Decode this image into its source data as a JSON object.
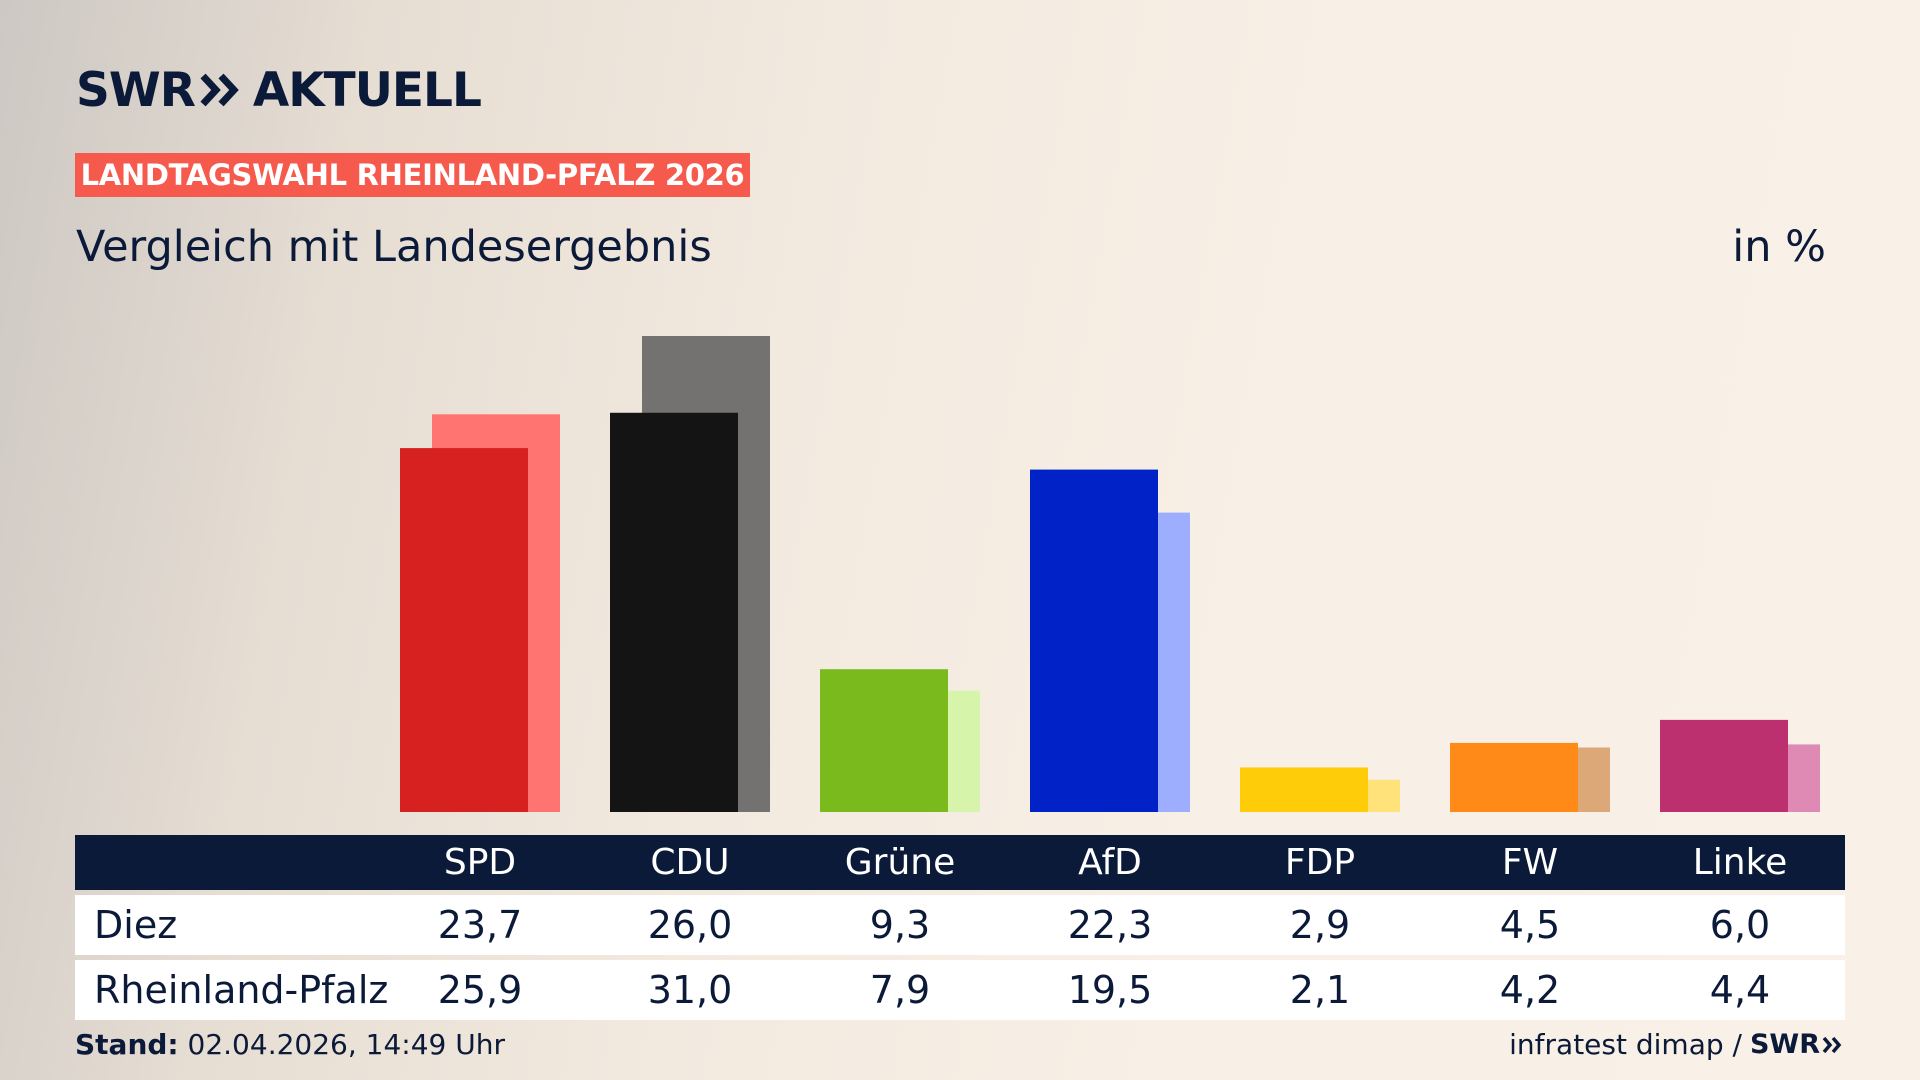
{
  "header": {
    "brand_left": "SWR",
    "brand_right": "AKTUELL",
    "badge": "LANDTAGSWAHL RHEINLAND-PFALZ 2026",
    "subtitle": "Vergleich mit Landesergebnis",
    "unit": "in %"
  },
  "footer": {
    "stand_label": "Stand:",
    "stand_value": "02.04.2026, 14:49 Uhr",
    "source": "infratest dimap /",
    "brand": "SWR"
  },
  "colors": {
    "navy": "#0b1a38",
    "badge": "#f55a4c"
  },
  "chart_data": {
    "type": "bar",
    "title": "Vergleich mit Landesergebnis",
    "ylabel": "in %",
    "categories": [
      "SPD",
      "CDU",
      "Grüne",
      "AfD",
      "FDP",
      "FW",
      "Linke"
    ],
    "series": [
      {
        "name": "Diez",
        "values": [
          23.7,
          26.0,
          9.3,
          22.3,
          2.9,
          4.5,
          6.0
        ],
        "labels": [
          "23,7",
          "26,0",
          "9,3",
          "22,3",
          "2,9",
          "4,5",
          "6,0"
        ],
        "colors": [
          "#d72020",
          "#141414",
          "#7aba1d",
          "#0022c7",
          "#ffcc0a",
          "#ff8a18",
          "#bd306f"
        ]
      },
      {
        "name": "Rheinland-Pfalz",
        "values": [
          25.9,
          31.0,
          7.9,
          19.5,
          2.1,
          4.2,
          4.4
        ],
        "labels": [
          "25,9",
          "31,0",
          "7,9",
          "19,5",
          "2,1",
          "4,2",
          "4,4"
        ],
        "colors": [
          "#ff7370",
          "#747270",
          "#d6f5aa",
          "#9eaeff",
          "#ffe37a",
          "#dca878",
          "#de8ab4"
        ]
      }
    ],
    "ylim": [
      0,
      31
    ],
    "grid": false,
    "legend": "table-below"
  }
}
